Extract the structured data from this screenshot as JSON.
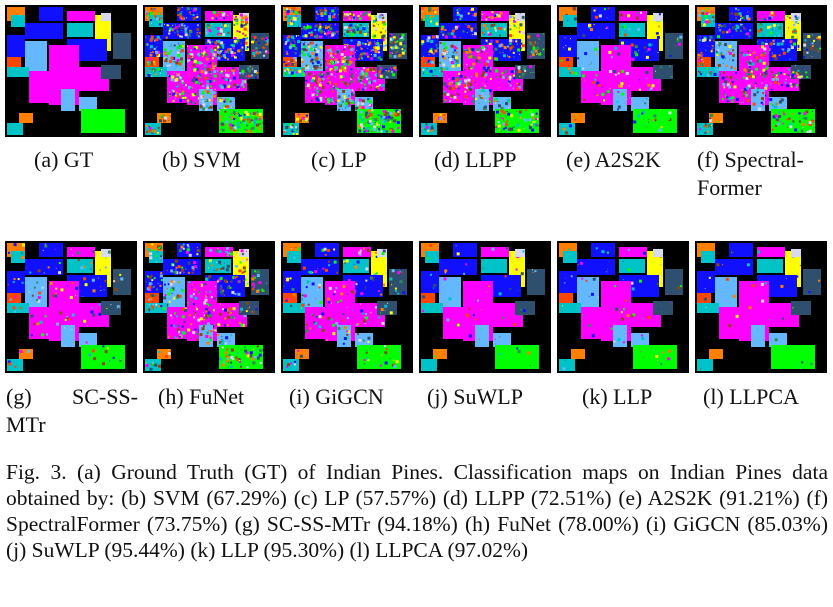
{
  "colors": {
    "background_class": "#000000",
    "class_palette": [
      "#00c3c8",
      "#1010ff",
      "#ff00ff",
      "#ffff00",
      "#63b8ff",
      "#00ff00",
      "#ff7f00",
      "#2f4f6f",
      "#d8d8f0",
      "#ff4500",
      "#2e8b57",
      "#8b4513"
    ]
  },
  "maps": [
    {
      "id": "gt",
      "label": "(a) GT",
      "noise": 0
    },
    {
      "id": "svm",
      "label": "(b) SVM",
      "noise": 0.55
    },
    {
      "id": "lp",
      "label": "(c) LP",
      "noise": 0.65
    },
    {
      "id": "llpp",
      "label": "(d) LLPP",
      "noise": 0.4
    },
    {
      "id": "a2s2k",
      "label": "(e) A2S2K",
      "noise": 0.12
    },
    {
      "id": "spectralformer",
      "label_line1": "(f) Spectral-",
      "label_line2": "Former",
      "noise": 0.35
    },
    {
      "id": "scssmtr",
      "label_line1": "(g) SC-SS-",
      "label_line2": "MTr",
      "noise": 0.08
    },
    {
      "id": "funet",
      "label": "(h) FuNet",
      "noise": 0.3
    },
    {
      "id": "gigcn",
      "label": "(i) GiGCN",
      "noise": 0.15
    },
    {
      "id": "suwlp",
      "label": "(j) SuWLP",
      "noise": 0.04
    },
    {
      "id": "llp",
      "label": "(k) LLP",
      "noise": 0.05
    },
    {
      "id": "llpca",
      "label": "(l) LLPCA",
      "noise": 0.03
    }
  ],
  "caption": "Fig. 3.  (a) Ground Truth (GT) of Indian Pines. Classification maps on Indian Pines data obtained by: (b) SVM (67.29%) (c) LP (57.57%) (d) LLPP (72.51%) (e) A2S2K (91.21%) (f) SpectralFormer (73.75%) (g) SC-SS-MTr (94.18%) (h) FuNet (78.00%) (i) GiGCN (85.03%) (j) SuWLP (95.44%) (k) LLP (95.30%) (l) LLPCA (97.02%)"
}
